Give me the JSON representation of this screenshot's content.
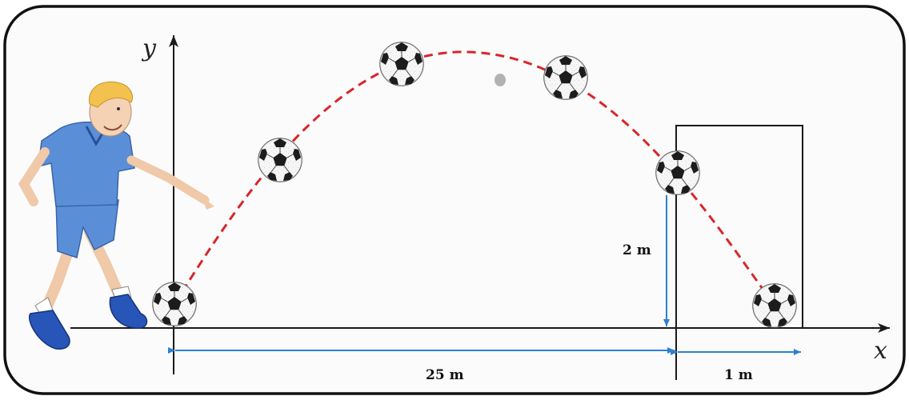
{
  "axes": {
    "x_label": "x",
    "y_label": "y"
  },
  "dimensions": {
    "horizontal_to_goal": "25 m",
    "goal_depth": "1 m",
    "height_at_goal": "2 m"
  },
  "colors": {
    "trajectory": "#d8262b",
    "dimension_arrows": "#2d7fd0",
    "axes": "#1a1a1a",
    "frame": "#111111",
    "shirt": "#5a8fd8",
    "hair": "#f2c14e",
    "shoes": "#2855b8"
  },
  "icons": {
    "ball": "soccer-ball-icon",
    "player": "kicking-boy-figure"
  }
}
